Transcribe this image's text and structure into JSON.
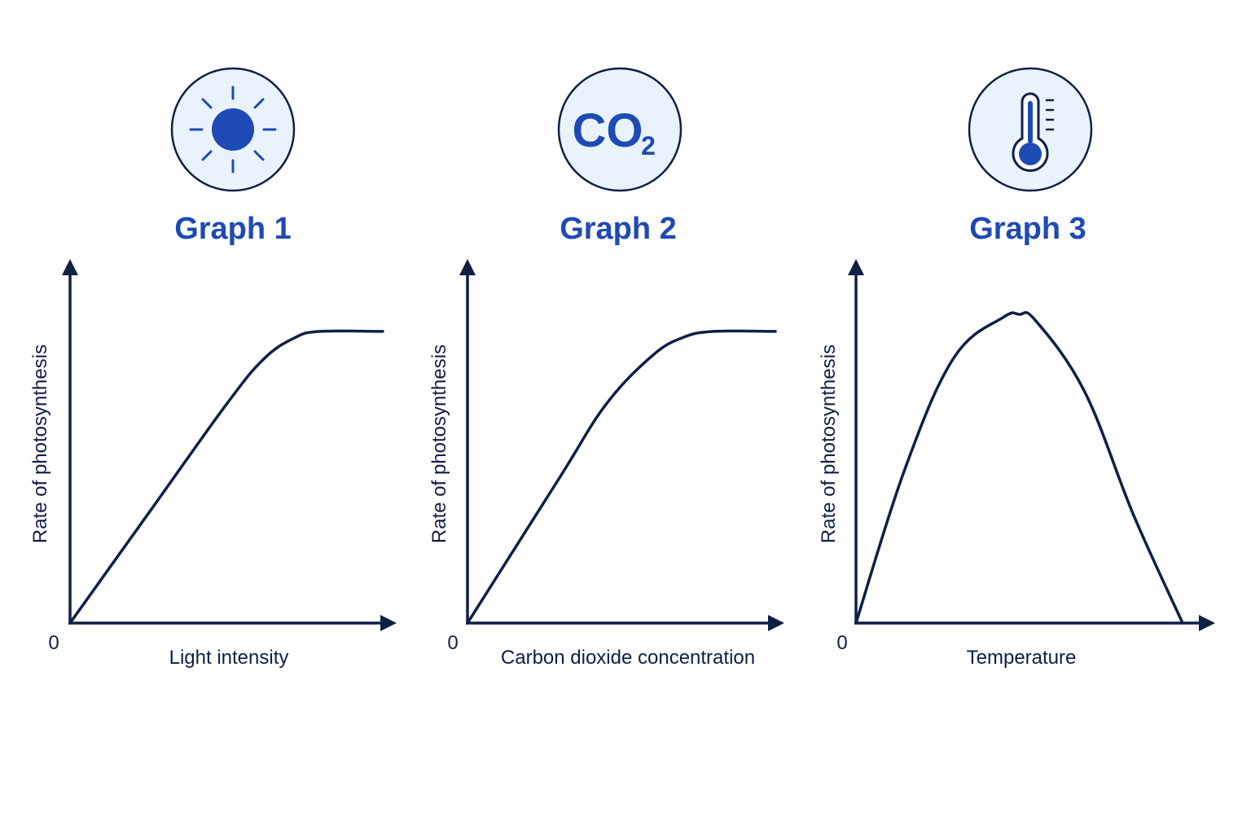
{
  "colors": {
    "accent": "#1d4ab5",
    "icon_bg": "#e9f3fd",
    "ink": "#0f1f45",
    "background": "#ffffff"
  },
  "panels": [
    {
      "title": "Graph 1",
      "icon": "sun-icon",
      "origin_label": "0",
      "chart_data": {
        "type": "line",
        "xlabel": "Light intensity",
        "ylabel": "Rate of photosynthesis",
        "grid": false,
        "xlim": [
          0,
          1
        ],
        "ylim": [
          0,
          1
        ],
        "series": [
          {
            "shape": "rise-then-plateau",
            "x": [
              0.0,
              0.25,
              0.5,
              0.62,
              0.72,
              0.8,
              1.0
            ],
            "y": [
              0.0,
              0.36,
              0.72,
              0.87,
              0.94,
              0.96,
              0.96
            ]
          }
        ]
      }
    },
    {
      "title": "Graph 2",
      "icon": "co2-icon",
      "icon_text": "CO",
      "icon_subscript": "2",
      "origin_label": "0",
      "chart_data": {
        "type": "line",
        "xlabel": "Carbon dioxide concentration",
        "ylabel": "Rate of photosynthesis",
        "grid": false,
        "xlim": [
          0,
          1
        ],
        "ylim": [
          0,
          1
        ],
        "series": [
          {
            "shape": "rise-then-plateau",
            "x": [
              0.0,
              0.3,
              0.45,
              0.6,
              0.7,
              0.8,
              1.0
            ],
            "y": [
              0.0,
              0.48,
              0.72,
              0.88,
              0.94,
              0.96,
              0.96
            ]
          }
        ]
      }
    },
    {
      "title": "Graph 3",
      "icon": "thermometer-icon",
      "origin_label": "0",
      "chart_data": {
        "type": "line",
        "xlabel": "Temperature",
        "ylabel": "Rate of photosynthesis",
        "grid": false,
        "xlim": [
          0,
          1
        ],
        "ylim": [
          0,
          1
        ],
        "series": [
          {
            "shape": "rise-peak-fall",
            "x": [
              0.0,
              0.15,
              0.3,
              0.45,
              0.5,
              0.55,
              0.7,
              0.85,
              1.0
            ],
            "y": [
              0.0,
              0.5,
              0.86,
              0.99,
              1.0,
              0.98,
              0.75,
              0.35,
              0.0
            ]
          }
        ]
      }
    }
  ]
}
